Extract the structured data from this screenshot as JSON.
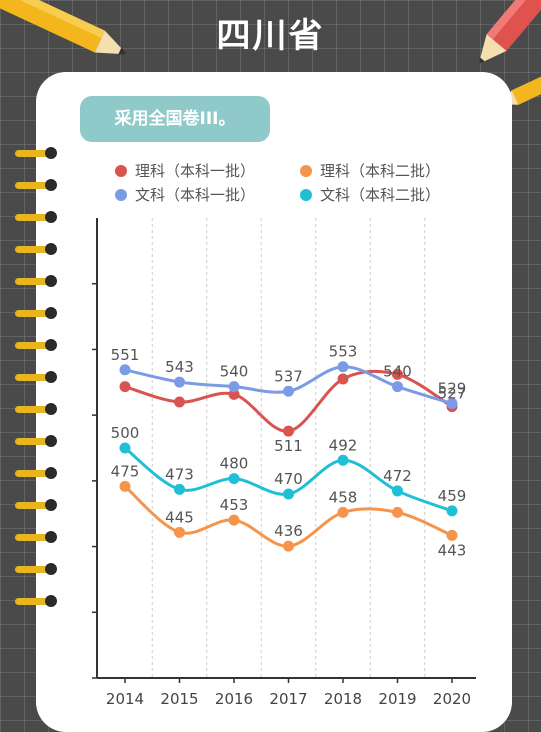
{
  "page": {
    "title": "四川省",
    "banner": "采用全国卷III。"
  },
  "colors": {
    "background": "#4a4a4a",
    "card": "#ffffff",
    "banner": "#8fc9c9",
    "rings": "#e8b51e"
  },
  "chart_data": {
    "type": "line",
    "categories": [
      "2014",
      "2015",
      "2016",
      "2017",
      "2018",
      "2019",
      "2020"
    ],
    "series": [
      {
        "name": "理科（本科一批）",
        "color": "#d9534f",
        "values": [
          540,
          530,
          535,
          511,
          545,
          548,
          527
        ],
        "labels": [
          null,
          null,
          null,
          "511",
          null,
          null,
          null
        ]
      },
      {
        "name": "理科（本科二批）",
        "color": "#f5944a",
        "values": [
          475,
          445,
          453,
          436,
          458,
          458,
          443
        ],
        "labels": [
          "475",
          "445",
          "453",
          "436",
          "458",
          null,
          "443"
        ]
      },
      {
        "name": "文科（本科一批）",
        "color": "#7b9be6",
        "values": [
          551,
          543,
          540,
          537,
          553,
          540,
          529
        ],
        "labels": [
          "551",
          "543",
          "540",
          "537",
          "553",
          "540",
          "529"
        ]
      },
      {
        "name": "文科（本科二批）",
        "color": "#1fc0d6",
        "values": [
          500,
          473,
          480,
          470,
          492,
          472,
          459
        ],
        "labels": [
          "500",
          "473",
          "480",
          "470",
          "492",
          "472",
          "459"
        ]
      }
    ],
    "extra_labels": [
      {
        "series": 0,
        "index": 6,
        "text": "527"
      }
    ],
    "ylim": [
      350,
      650
    ],
    "grid": "vertical-dashed",
    "legend_position": "top"
  }
}
